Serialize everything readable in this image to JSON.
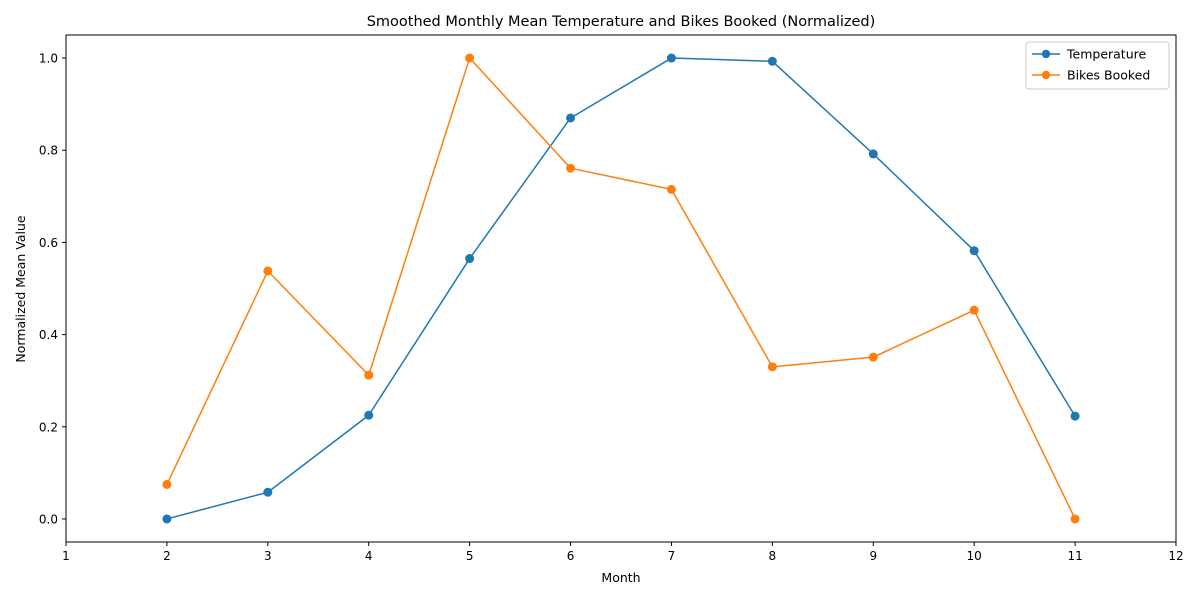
{
  "chart_data": {
    "type": "line",
    "title": "Smoothed Monthly Mean Temperature and Bikes Booked (Normalized)",
    "xlabel": "Month",
    "ylabel": "Normalized Mean Value",
    "xlim": [
      1,
      12
    ],
    "ylim": [
      -0.05,
      1.05
    ],
    "xticks": [
      1,
      2,
      3,
      4,
      5,
      6,
      7,
      8,
      9,
      10,
      11,
      12
    ],
    "yticks": [
      0.0,
      0.2,
      0.4,
      0.6,
      0.8,
      1.0
    ],
    "ytick_labels": [
      "0.0",
      "0.2",
      "0.4",
      "0.6",
      "0.8",
      "1.0"
    ],
    "grid": false,
    "legend_position": "top-right",
    "x": [
      2,
      3,
      4,
      5,
      6,
      7,
      8,
      9,
      10,
      11
    ],
    "series": [
      {
        "name": "Temperature",
        "color": "#1f77b4",
        "marker": "circle",
        "values": [
          0.0,
          0.058,
          0.225,
          0.565,
          0.87,
          1.0,
          0.993,
          0.792,
          0.582,
          0.223
        ]
      },
      {
        "name": "Bikes Booked",
        "color": "#ff7f0e",
        "marker": "circle",
        "values": [
          0.075,
          0.538,
          0.312,
          1.0,
          0.761,
          0.715,
          0.33,
          0.351,
          0.453,
          0.0
        ]
      }
    ]
  }
}
